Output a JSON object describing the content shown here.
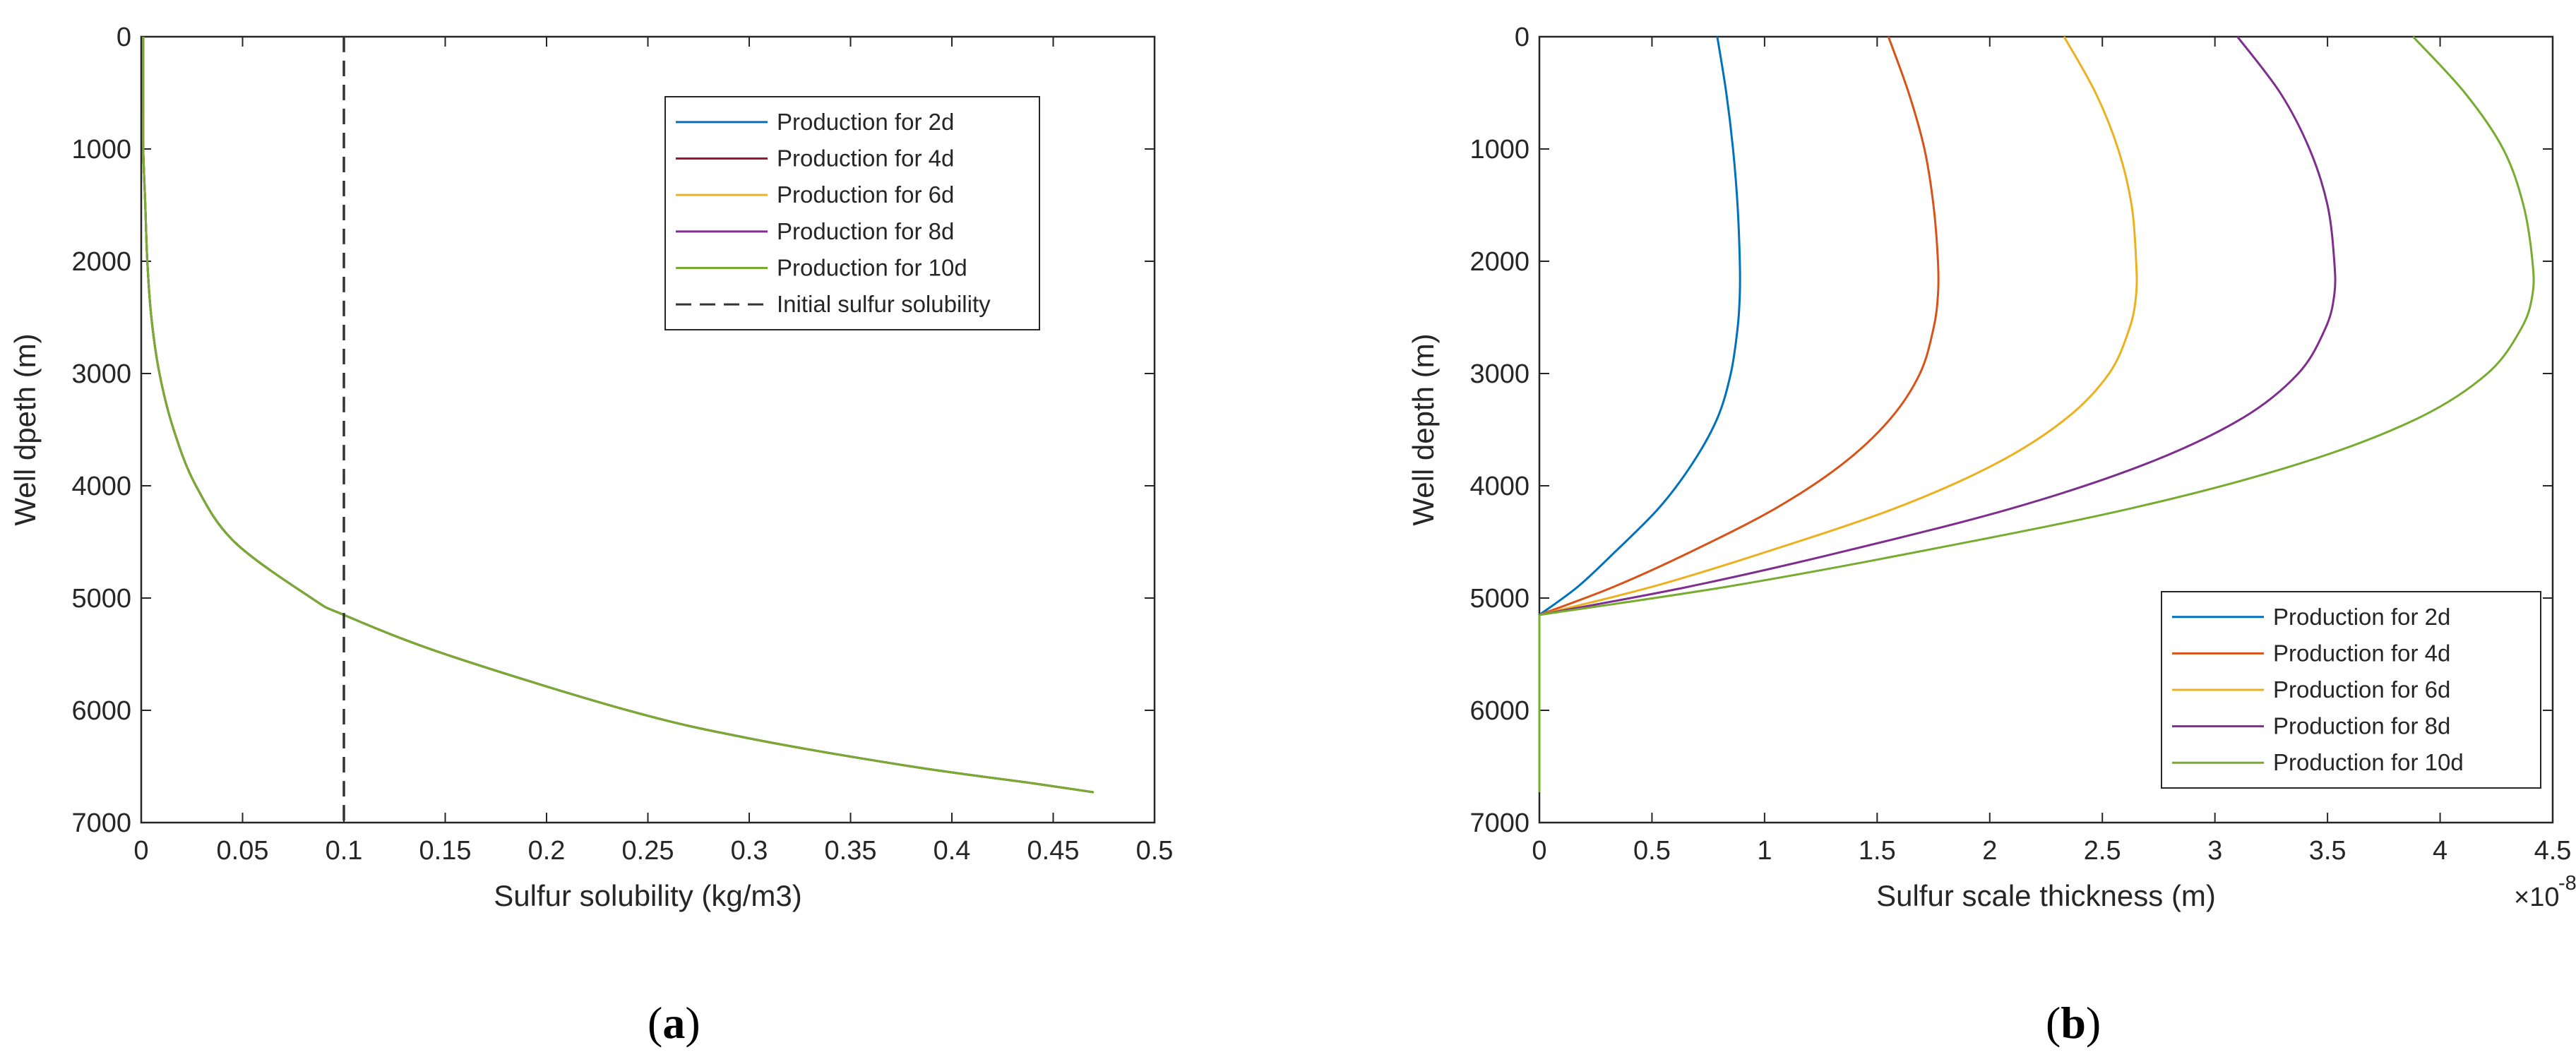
{
  "chart_data": [
    {
      "panel": "(a)",
      "panel_parts": [
        "(",
        "a",
        ")"
      ],
      "type": "line",
      "xlabel": "Sulfur solubility (kg/m3)",
      "ylabel": "Well dpeth (m)",
      "xlim": [
        0,
        0.5
      ],
      "ylim": [
        0,
        7000
      ],
      "y_reversed": true,
      "xticks": [
        "0",
        "0.05",
        "0.1",
        "0.15",
        "0.2",
        "0.25",
        "0.3",
        "0.35",
        "0.4",
        "0.45",
        "0.5"
      ],
      "yticks": [
        "0",
        "1000",
        "2000",
        "3000",
        "4000",
        "5000",
        "6000",
        "7000"
      ],
      "legend_position": "top-right",
      "series": [
        {
          "name": "Production for 2d",
          "color": "#0072BD",
          "dash": "solid"
        },
        {
          "name": "Production for 4d",
          "color": "#A2142F",
          "dash": "solid"
        },
        {
          "name": "Production for 6d",
          "color": "#EDB120",
          "dash": "solid"
        },
        {
          "name": "Production for 8d",
          "color": "#7E2F8E",
          "dash": "solid"
        },
        {
          "name": "Production for 10d",
          "color": "#77AC30",
          "dash": "solid"
        },
        {
          "name": "Initial sulfur solubility",
          "color": "#333333",
          "dash": "dashed",
          "x": [
            0.1,
            0.1
          ],
          "y": [
            0,
            7000
          ]
        }
      ],
      "curve_shared": {
        "depth": [
          0,
          500,
          1000,
          1500,
          2000,
          2500,
          3000,
          3500,
          4000,
          4500,
          5000,
          5150,
          5500,
          6000,
          6250,
          6500,
          6650,
          6730
        ],
        "solubility": [
          0.001,
          0.001,
          0.001,
          0.002,
          0.003,
          0.005,
          0.009,
          0.016,
          0.027,
          0.046,
          0.084,
          0.1,
          0.15,
          0.24,
          0.3,
          0.38,
          0.44,
          0.47
        ]
      }
    },
    {
      "panel": "(b)",
      "panel_parts": [
        "(",
        "b",
        ")"
      ],
      "type": "line",
      "xlabel": "Sulfur scale thickness (m)",
      "ylabel": "Well depth (m)",
      "x_multiplier": "×10",
      "x_multiplier_exp": "-8",
      "xlim": [
        0,
        4.5
      ],
      "ylim": [
        0,
        7000
      ],
      "y_reversed": true,
      "xticks": [
        "0",
        "0.5",
        "1",
        "1.5",
        "2",
        "2.5",
        "3",
        "3.5",
        "4",
        "4.5"
      ],
      "yticks": [
        "0",
        "1000",
        "2000",
        "3000",
        "4000",
        "5000",
        "6000",
        "7000"
      ],
      "legend_position": "bottom-right",
      "depth": [
        0,
        500,
        1000,
        1500,
        2000,
        2300,
        2600,
        3000,
        3400,
        3800,
        4200,
        4600,
        4900,
        5150
      ],
      "series": [
        {
          "name": "Production for 2d",
          "color": "#0072BD",
          "x": [
            0.79,
            0.83,
            0.86,
            0.88,
            0.89,
            0.89,
            0.88,
            0.85,
            0.79,
            0.68,
            0.53,
            0.33,
            0.17,
            0.0
          ]
        },
        {
          "name": "Production for 4d",
          "color": "#D95319",
          "x": [
            1.55,
            1.64,
            1.71,
            1.75,
            1.77,
            1.77,
            1.75,
            1.69,
            1.56,
            1.35,
            1.05,
            0.66,
            0.33,
            0.0
          ]
        },
        {
          "name": "Production for 6d",
          "color": "#EDB120",
          "x": [
            2.33,
            2.47,
            2.57,
            2.63,
            2.65,
            2.65,
            2.62,
            2.53,
            2.34,
            2.03,
            1.58,
            0.99,
            0.5,
            0.0
          ]
        },
        {
          "name": "Production for 8d",
          "color": "#7E2F8E",
          "x": [
            3.1,
            3.29,
            3.42,
            3.5,
            3.53,
            3.53,
            3.49,
            3.37,
            3.12,
            2.7,
            2.1,
            1.32,
            0.66,
            0.0
          ]
        },
        {
          "name": "Production for 10d",
          "color": "#77AC30",
          "x": [
            3.88,
            4.11,
            4.28,
            4.37,
            4.41,
            4.41,
            4.36,
            4.21,
            3.9,
            3.38,
            2.63,
            1.65,
            0.83,
            0.0
          ]
        }
      ],
      "tail": {
        "x": [
          0,
          0
        ],
        "y": [
          5150,
          6730
        ]
      }
    }
  ]
}
